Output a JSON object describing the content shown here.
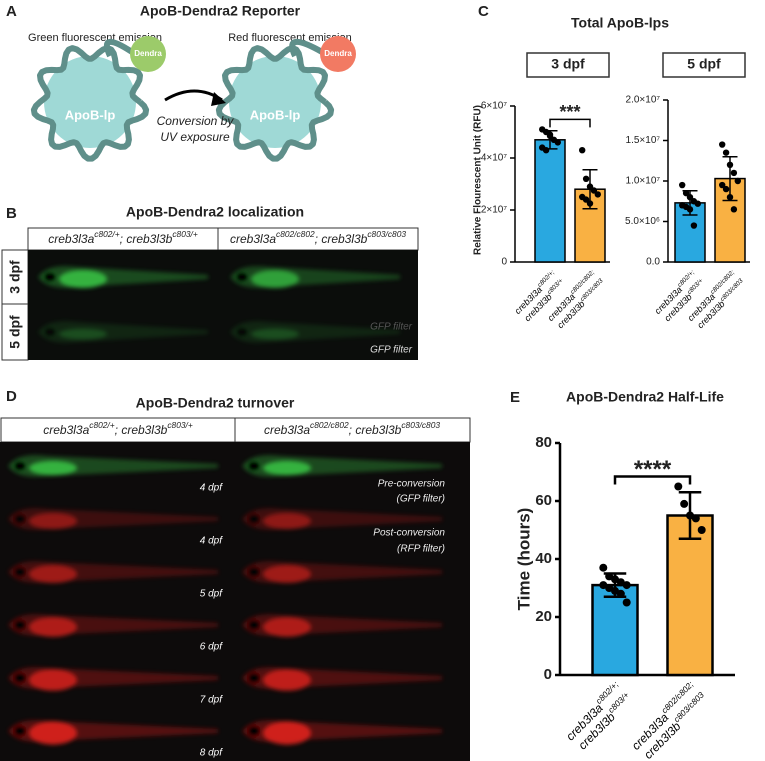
{
  "panel_a": {
    "label": "A",
    "title": "ApoB-Dendra2 Reporter",
    "green_caption": "Green fluorescent emission",
    "red_caption": "Red fluorescent emission",
    "protein": [
      "ApoB-lp",
      "ApoB-lp"
    ],
    "tag": [
      "Dendra",
      "Dendra"
    ],
    "arrow_caption": [
      "Conversion by",
      "UV exposure"
    ]
  },
  "panel_b": {
    "label": "B",
    "title": "ApoB-Dendra2 localization",
    "columns": [
      [
        [
          "creb3l3a",
          "c802/+"
        ],
        [
          "; creb3l3b",
          "c803/+"
        ]
      ],
      [
        [
          "creb3l3a",
          "c802/c802"
        ],
        [
          "; creb3l3b",
          "c803/c803"
        ]
      ]
    ],
    "rows": [
      "3 dpf",
      "5 dpf"
    ],
    "filter_notes": [
      "GFP filter",
      "GFP filter"
    ]
  },
  "panel_c": {
    "label": "C",
    "title": "Total ApoB-lps",
    "y_label": "Relative Flourescent Unit (RFU)"
  },
  "panel_d": {
    "label": "D",
    "title": "ApoB-Dendra2 turnover",
    "columns": [
      [
        [
          "creb3l3a",
          "c802/+"
        ],
        [
          "; creb3l3b",
          "c803/+"
        ]
      ],
      [
        [
          "creb3l3a",
          "c802/c802"
        ],
        [
          "; creb3l3b",
          "c803/c803"
        ]
      ]
    ],
    "rows": [
      "4 dpf",
      "4 dpf",
      "5 dpf",
      "6 dpf",
      "7 dpf",
      "8 dpf"
    ],
    "notes": [
      [
        "Pre-conversion",
        "(GFP filter)"
      ],
      [
        "Post-conversion",
        "(RFP filter)"
      ]
    ]
  },
  "panel_e": {
    "label": "E"
  },
  "chart_data": [
    {
      "type": "bar",
      "title": "3 dpf",
      "categories": [
        [
          [
            "creb3l3a",
            "c802/+;"
          ],
          [
            "creb3l3b",
            "c803/+"
          ]
        ],
        [
          [
            "creb3l3a",
            "c802/c802;"
          ],
          [
            "creb3l3b",
            "c803/c803"
          ]
        ]
      ],
      "values": [
        47000000,
        28000000
      ],
      "errors": [
        3500000,
        7500000
      ],
      "points": [
        [
          51000000,
          50000000,
          48500000,
          47000000,
          46000000,
          44000000,
          43000000,
          49000000
        ],
        [
          43000000,
          32000000,
          29000000,
          27500000,
          26000000,
          25000000,
          24000000,
          22500000
        ]
      ],
      "colors": [
        "#29a8e0",
        "#f9b143"
      ],
      "ylim": [
        0,
        60000000
      ],
      "yticks": [
        0,
        {
          "value": 20000000,
          "label": "2×10⁷"
        },
        {
          "value": 40000000,
          "label": "4×10⁷"
        },
        {
          "value": 60000000,
          "label": "6×10⁷"
        }
      ],
      "significance": "***"
    },
    {
      "type": "bar",
      "title": "5 dpf",
      "categories": [
        [
          [
            "creb3l3a",
            "c802/+;"
          ],
          [
            "creb3l3b",
            "c803/+"
          ]
        ],
        [
          [
            "creb3l3a",
            "c802/c802;"
          ],
          [
            "creb3l3b",
            "c803/c803"
          ]
        ]
      ],
      "values": [
        7300000,
        10300000
      ],
      "errors": [
        1500000,
        2700000
      ],
      "points": [
        [
          9500000,
          8500000,
          8000000,
          7500000,
          7200000,
          7000000,
          6800000,
          6500000,
          4500000
        ],
        [
          14500000,
          13500000,
          12000000,
          11000000,
          10000000,
          9500000,
          9000000,
          8000000,
          6500000
        ]
      ],
      "colors": [
        "#29a8e0",
        "#f9b143"
      ],
      "ylim": [
        0,
        20000000
      ],
      "yticks": [
        {
          "value": 0,
          "label": "0.0"
        },
        {
          "value": 5000000,
          "label": "5.0×10⁶"
        },
        {
          "value": 10000000,
          "label": "1.0×10⁷"
        },
        {
          "value": 15000000,
          "label": "1.5×10⁷"
        },
        {
          "value": 20000000,
          "label": "2.0×10⁷"
        }
      ]
    },
    {
      "type": "bar",
      "title": "ApoB-Dendra2 Half-Life",
      "y_label": "Time (hours)",
      "categories": [
        [
          [
            "creb3l3a",
            "c802/+;"
          ],
          [
            "creb3l3b",
            "c803/+"
          ]
        ],
        [
          [
            "creb3l3a",
            "c802/c802;"
          ],
          [
            "creb3l3b",
            "c803/c803"
          ]
        ]
      ],
      "values": [
        31,
        55
      ],
      "errors": [
        4,
        8
      ],
      "points": [
        [
          37,
          34,
          33,
          32,
          31,
          31,
          30,
          29,
          28,
          25
        ],
        [
          65,
          59,
          55,
          54,
          50
        ]
      ],
      "colors": [
        "#29a8e0",
        "#f9b143"
      ],
      "ylim": [
        0,
        80
      ],
      "yticks": [
        0,
        20,
        40,
        60,
        80
      ],
      "significance": "****"
    }
  ]
}
